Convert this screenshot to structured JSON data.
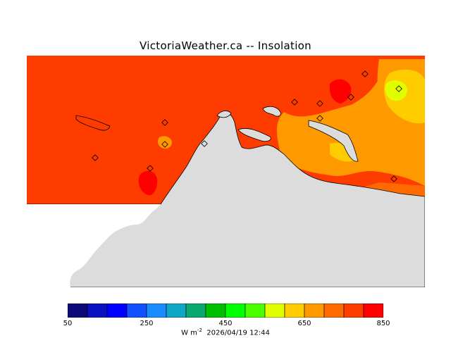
{
  "title": "VictoriaWeather.ca -- Insolation",
  "colorbar": {
    "colors": [
      "#0d0a7a",
      "#0a12c4",
      "#0000ff",
      "#1050ff",
      "#1a8cff",
      "#0fa6c8",
      "#09a86e",
      "#00bf00",
      "#00ff00",
      "#4cff00",
      "#dfff00",
      "#ffcc00",
      "#ff9900",
      "#ff6a00",
      "#ff3c00",
      "#ff0000"
    ],
    "tick_labels": [
      "50",
      "250",
      "450",
      "650",
      "850"
    ]
  },
  "units": "W m",
  "units_exponent": "-2",
  "timestamp": "2026/04/19 12:44",
  "palette": {
    "land": "#dcdcdc",
    "coast": "#000000",
    "field_high": "#ff3c00",
    "field_mid": "#ff6a00",
    "field_low": "#ff9900",
    "field_peak": "#ff0000",
    "field_yellow": "#ffcc00",
    "field_bright": "#dfff00"
  },
  "stations_count_note": ""
}
